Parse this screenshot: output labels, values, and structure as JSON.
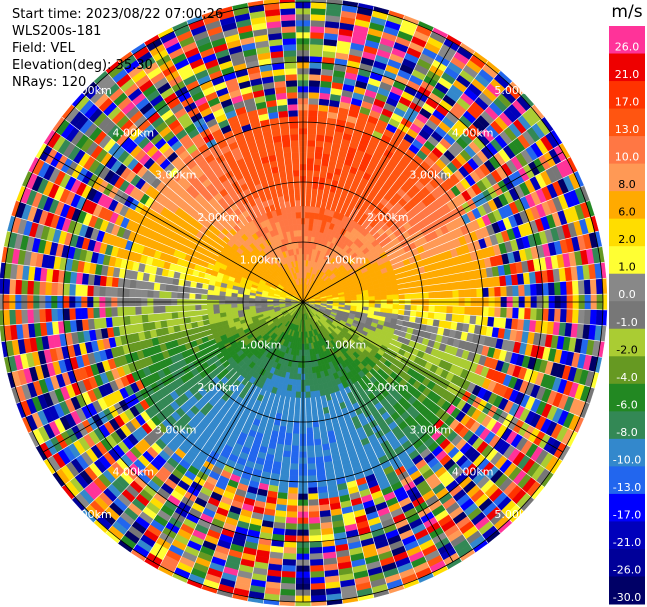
{
  "header": {
    "start_time": "Start time: 2023/08/22 07:00:26",
    "instrument": "WLS200s-181",
    "field": "Field: VEL",
    "elevation": "Elevation(deg): 35.30",
    "nrays": "NRays: 120"
  },
  "chart_data": {
    "type": "heatmap",
    "projection": "polar PPI",
    "field": "VEL",
    "units": "m/s",
    "nrays": 120,
    "range_rings_km": [
      1.0,
      2.0,
      3.0,
      4.0,
      5.0
    ],
    "ring_labels": {
      "1": "1.00km",
      "2": "2.00km",
      "3": "3.00km",
      "4": "4.00km",
      "5": "5.00km"
    },
    "valid_data_max_km": 3.2,
    "colorbar": {
      "unit_label": "m/s",
      "levels": [
        "26.0",
        "21.0",
        "17.0",
        "13.0",
        "10.0",
        "8.0",
        "6.0",
        "2.0",
        "1.0",
        "0.0",
        "-1.0",
        "-2.0",
        "-4.0",
        "-6.0",
        "-8.0",
        "-10.0",
        "-13.0",
        "-17.0",
        "-21.0",
        "-26.0",
        "-30.0"
      ],
      "colors": [
        "#ff3399",
        "#ee0000",
        "#ff3300",
        "#ff5511",
        "#ff7744",
        "#ff9955",
        "#ffaa00",
        "#ffdd00",
        "#ffff33",
        "#888888",
        "#777777",
        "#aacc33",
        "#669922",
        "#228822",
        "#338855",
        "#3388cc",
        "#2266ee",
        "#0000ff",
        "#0000bb",
        "#000099",
        "#000066"
      ]
    },
    "wind_pattern": "dealiased radial velocity; positive (orange/red) toward north, near-zero (gray) along NE-SW axis, negative (green/blue) toward south; noise beyond ~3.2 km"
  }
}
